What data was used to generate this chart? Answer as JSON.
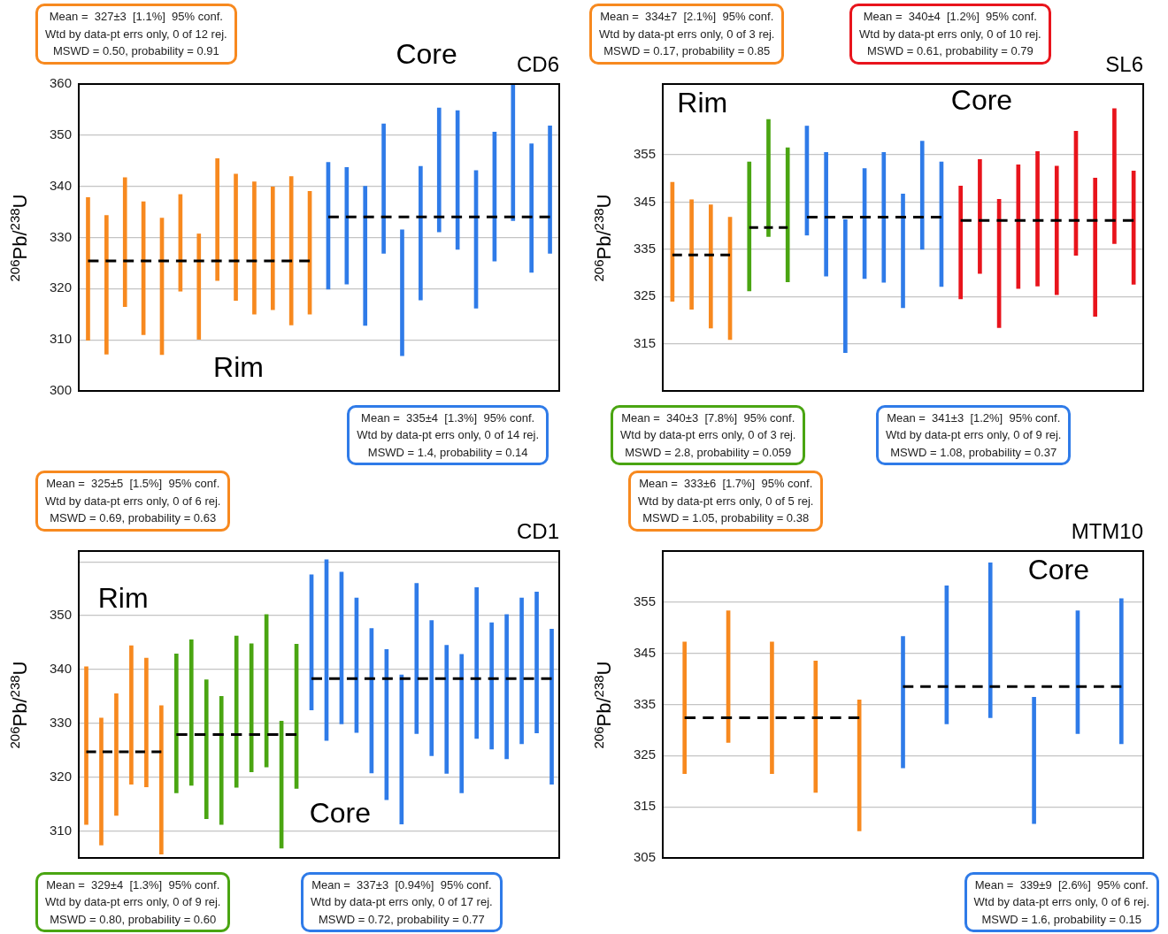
{
  "chart_data": [
    {
      "type": "bar",
      "title": "CD6",
      "ylabel": "$^{206}$Pb/$^{238}$U",
      "ylim": [
        300,
        360
      ],
      "yticks": [
        300,
        310,
        320,
        330,
        340,
        350,
        360
      ],
      "grid": "y",
      "tick_labels": "y",
      "categories": [
        null,
        null,
        null,
        null,
        null,
        null,
        null,
        null,
        null,
        null,
        null,
        null,
        null,
        null,
        null,
        null,
        null,
        null,
        null,
        null,
        null,
        null,
        null,
        null,
        null,
        null
      ],
      "series": [
        {
          "color": "#f7891f",
          "values": [
            27.9,
            27.1,
            25.2,
            26.0,
            26.7,
            18.9,
            20.6,
            23.8,
            24.7,
            25.9,
            24.0,
            29.0,
            24.0,
            null,
            null,
            null,
            null,
            null,
            null,
            null,
            null,
            null,
            null,
            null,
            null,
            null
          ],
          "base": [
            309.9,
            307.2,
            316.5,
            311.0,
            307.1,
            319.5,
            310.1,
            321.6,
            317.7,
            315.0,
            315.9,
            312.9,
            315.0,
            null,
            null,
            null,
            null,
            null,
            null,
            null,
            null,
            null,
            null,
            null,
            null,
            null
          ]
        },
        {
          "color": "#2f7be8",
          "values": [
            null,
            null,
            null,
            null,
            null,
            null,
            null,
            null,
            null,
            null,
            null,
            null,
            null,
            24.8,
            22.8,
            27.2,
            25.3,
            24.6,
            26.1,
            24.2,
            27.1,
            26.9,
            25.2,
            26.5,
            25.1,
            24.9
          ],
          "base": [
            null,
            null,
            null,
            null,
            null,
            null,
            null,
            null,
            null,
            null,
            null,
            null,
            null,
            319.9,
            320.9,
            312.8,
            326.9,
            306.9,
            317.8,
            331.1,
            327.7,
            316.2,
            325.4,
            333.3,
            323.2,
            326.9
          ]
        },
        {
          "type": "line",
          "color": "#000000",
          "line_style": "dashed",
          "marker": "none",
          "values": [
            325.4,
            325.4,
            325.4,
            325.4,
            325.4,
            325.4,
            325.4,
            325.4,
            325.4,
            325.4,
            325.4,
            325.4,
            325.4,
            null,
            null,
            null,
            null,
            null,
            null,
            null,
            null,
            null,
            null,
            null,
            null,
            null
          ]
        },
        {
          "type": "line",
          "color": "#000000",
          "line_style": "dashed",
          "marker": "none",
          "values": [
            null,
            null,
            null,
            null,
            null,
            null,
            null,
            null,
            null,
            null,
            null,
            null,
            null,
            334.0,
            334.0,
            334.0,
            334.0,
            334.0,
            334.0,
            334.0,
            334.0,
            334.0,
            334.0,
            334.0,
            334.0,
            334.0
          ]
        }
      ],
      "annotations": [
        "Mean =  327±3  [1.1%]  95% conf.\nWtd by data-pt errs only, 0 of 12 rej.\nMSWD = 0.50, probability = 0.91",
        "Mean =  335±4  [1.3%]  95% conf.\nWtd by data-pt errs only, 0 of 14 rej.\nMSWD = 1.4, probability = 0.14",
        "Rim",
        "Core"
      ]
    },
    {
      "type": "bar",
      "title": "SL6",
      "ylabel": "$^{206}$Pb/$^{238}$U",
      "ylim": [
        305,
        370
      ],
      "yticks": [
        315,
        325,
        335,
        345,
        355
      ],
      "grid": "y",
      "tick_labels": "y",
      "categories": [
        null,
        null,
        null,
        null,
        null,
        null,
        null,
        null,
        null,
        null,
        null,
        null,
        null,
        null,
        null,
        null,
        null,
        null,
        null,
        null,
        null,
        null,
        null,
        null,
        null
      ],
      "series": [
        {
          "color": "#f7891f",
          "values": [
            25.2,
            23.2,
            26.1,
            25.9,
            null,
            null,
            null,
            null,
            null,
            null,
            null,
            null,
            null,
            null,
            null,
            null,
            null,
            null,
            null,
            null,
            null,
            null,
            null,
            null,
            null
          ],
          "base": [
            324.0,
            322.3,
            318.3,
            315.9,
            null,
            null,
            null,
            null,
            null,
            null,
            null,
            null,
            null,
            null,
            null,
            null,
            null,
            null,
            null,
            null,
            null,
            null,
            null,
            null,
            null
          ]
        },
        {
          "color": "#4aa512",
          "values": [
            null,
            null,
            null,
            null,
            27.3,
            24.8,
            28.4,
            null,
            null,
            null,
            null,
            null,
            null,
            null,
            null,
            null,
            null,
            null,
            null,
            null,
            null,
            null,
            null,
            null,
            null
          ],
          "base": [
            null,
            null,
            null,
            null,
            326.2,
            337.7,
            328.1,
            null,
            null,
            null,
            null,
            null,
            null,
            null,
            null,
            null,
            null,
            null,
            null,
            null,
            null,
            null,
            null,
            null,
            null
          ]
        },
        {
          "color": "#2f7be8",
          "values": [
            null,
            null,
            null,
            null,
            null,
            null,
            null,
            23.1,
            26.2,
            28.2,
            23.3,
            27.5,
            24.1,
            22.9,
            26.4,
            null,
            null,
            null,
            null,
            null,
            null,
            null,
            null,
            null,
            null
          ],
          "base": [
            null,
            null,
            null,
            null,
            null,
            null,
            null,
            338.0,
            329.3,
            313.1,
            328.8,
            328.0,
            322.6,
            335.0,
            327.1,
            null,
            null,
            null,
            null,
            null,
            null,
            null,
            null,
            null,
            null
          ]
        },
        {
          "color": "#e8141c",
          "values": [
            null,
            null,
            null,
            null,
            null,
            null,
            null,
            null,
            null,
            null,
            null,
            null,
            null,
            null,
            null,
            23.9,
            24.1,
            27.2,
            26.2,
            28.5,
            27.2,
            26.3,
            29.3,
            28.6,
            24.0
          ],
          "base": [
            null,
            null,
            null,
            null,
            null,
            null,
            null,
            null,
            null,
            null,
            null,
            null,
            null,
            null,
            null,
            324.5,
            329.9,
            318.4,
            326.7,
            327.2,
            325.4,
            333.7,
            320.8,
            336.2,
            327.6
          ]
        },
        {
          "type": "line",
          "color": "#000000",
          "line_style": "dashed",
          "marker": "none",
          "values": [
            333.8,
            333.8,
            333.8,
            333.8,
            null,
            null,
            null,
            null,
            null,
            null,
            null,
            null,
            null,
            null,
            null,
            null,
            null,
            null,
            null,
            null,
            null,
            null,
            null,
            null,
            null
          ]
        },
        {
          "type": "line",
          "color": "#000000",
          "line_style": "dashed",
          "marker": "none",
          "values": [
            null,
            null,
            null,
            null,
            339.6,
            339.6,
            339.6,
            null,
            null,
            null,
            null,
            null,
            null,
            null,
            null,
            null,
            null,
            null,
            null,
            null,
            null,
            null,
            null,
            null,
            null
          ]
        },
        {
          "type": "line",
          "color": "#000000",
          "line_style": "dashed",
          "marker": "none",
          "values": [
            null,
            null,
            null,
            null,
            null,
            null,
            null,
            341.8,
            341.8,
            341.8,
            341.8,
            341.8,
            341.8,
            341.8,
            341.8,
            null,
            null,
            null,
            null,
            null,
            null,
            null,
            null,
            null,
            null
          ]
        },
        {
          "type": "line",
          "color": "#000000",
          "line_style": "dashed",
          "marker": "none",
          "values": [
            null,
            null,
            null,
            null,
            null,
            null,
            null,
            null,
            null,
            null,
            null,
            null,
            null,
            null,
            null,
            341.1,
            341.1,
            341.1,
            341.1,
            341.1,
            341.1,
            341.1,
            341.1,
            341.1,
            341.1
          ]
        }
      ],
      "annotations": [
        "Mean =  334±7  [2.1%]  95% conf.\nWtd by data-pt errs only, 0 of 3 rej.\nMSWD = 0.17, probability = 0.85",
        "Mean =  340±3  [7.8%]  95% conf.\nWtd by data-pt errs only, 0 of 3 rej.\nMSWD = 2.8, probability = 0.059",
        "Mean =  341±3  [1.2%]  95% conf.\nWtd by data-pt errs only, 0 of 9 rej.\nMSWD = 1.08, probability = 0.37",
        "Mean =  340±4  [1.2%]  95% conf.\nWtd by data-pt errs only, 0 of 10 rej.\nMSWD = 0.61, probability = 0.79",
        "Rim",
        "Core"
      ]
    },
    {
      "type": "bar",
      "title": "CD1",
      "ylabel": "$^{206}$Pb/$^{238}$U",
      "ylim": [
        305,
        362
      ],
      "yticks": [
        310,
        320,
        330,
        340,
        350,
        {
          "value": 360,
          "label": null
        }
      ],
      "grid": "y",
      "tick_labels": "y",
      "categories": [
        null,
        null,
        null,
        null,
        null,
        null,
        null,
        null,
        null,
        null,
        null,
        null,
        null,
        null,
        null,
        null,
        null,
        null,
        null,
        null,
        null,
        null,
        null,
        null,
        null,
        null,
        null,
        null,
        null,
        null,
        null,
        null
      ],
      "series": [
        {
          "color": "#f7891f",
          "values": [
            29.3,
            23.6,
            22.6,
            25.7,
            23.9,
            27.6,
            null,
            null,
            null,
            null,
            null,
            null,
            null,
            null,
            null,
            null,
            null,
            null,
            null,
            null,
            null,
            null,
            null,
            null,
            null,
            null,
            null,
            null,
            null,
            null,
            null,
            null
          ],
          "base": [
            311.2,
            307.4,
            312.9,
            318.7,
            318.2,
            305.7,
            null,
            null,
            null,
            null,
            null,
            null,
            null,
            null,
            null,
            null,
            null,
            null,
            null,
            null,
            null,
            null,
            null,
            null,
            null,
            null,
            null,
            null,
            null,
            null,
            null,
            null
          ]
        },
        {
          "color": "#4aa512",
          "values": [
            null,
            null,
            null,
            null,
            null,
            null,
            25.8,
            27.0,
            25.8,
            23.8,
            28.1,
            23.8,
            28.3,
            23.6,
            26.8,
            null,
            null,
            null,
            null,
            null,
            null,
            null,
            null,
            null,
            null,
            null,
            null,
            null,
            null,
            null,
            null,
            null
          ],
          "base": [
            null,
            null,
            null,
            null,
            null,
            null,
            317.1,
            318.5,
            312.3,
            311.2,
            318.1,
            321.0,
            321.9,
            306.8,
            317.9,
            null,
            null,
            null,
            null,
            null,
            null,
            null,
            null,
            null,
            null,
            null,
            null,
            null,
            null,
            null,
            null,
            null
          ]
        },
        {
          "color": "#2f7be8",
          "values": [
            null,
            null,
            null,
            null,
            null,
            null,
            null,
            null,
            null,
            null,
            null,
            null,
            null,
            null,
            null,
            25.1,
            33.6,
            28.2,
            25.0,
            26.8,
            27.9,
            27.7,
            27.9,
            25.1,
            23.8,
            25.7,
            28.0,
            23.5,
            26.8,
            27.1,
            26.2,
            28.8
          ],
          "base": [
            null,
            null,
            null,
            null,
            null,
            null,
            null,
            null,
            null,
            null,
            null,
            null,
            null,
            null,
            null,
            332.5,
            326.8,
            329.9,
            328.3,
            320.8,
            315.8,
            311.3,
            328.1,
            324.0,
            320.7,
            317.1,
            327.2,
            325.2,
            323.4,
            326.2,
            328.2,
            318.7
          ]
        },
        {
          "type": "line",
          "color": "#000000",
          "line_style": "dashed",
          "marker": "none",
          "values": [
            324.7,
            324.7,
            324.7,
            324.7,
            324.7,
            324.7,
            null,
            null,
            null,
            null,
            null,
            null,
            null,
            null,
            null,
            null,
            null,
            null,
            null,
            null,
            null,
            null,
            null,
            null,
            null,
            null,
            null,
            null,
            null,
            null,
            null,
            null
          ]
        },
        {
          "type": "line",
          "color": "#000000",
          "line_style": "dashed",
          "marker": "none",
          "values": [
            null,
            null,
            null,
            null,
            null,
            null,
            327.9,
            327.9,
            327.9,
            327.9,
            327.9,
            327.9,
            327.9,
            327.9,
            327.9,
            null,
            null,
            null,
            null,
            null,
            null,
            null,
            null,
            null,
            null,
            null,
            null,
            null,
            null,
            null,
            null,
            null
          ]
        },
        {
          "type": "line",
          "color": "#000000",
          "line_style": "dashed",
          "marker": "none",
          "values": [
            null,
            null,
            null,
            null,
            null,
            null,
            null,
            null,
            null,
            null,
            null,
            null,
            null,
            null,
            null,
            338.3,
            338.3,
            338.3,
            338.3,
            338.3,
            338.3,
            338.3,
            338.3,
            338.3,
            338.3,
            338.3,
            338.3,
            338.3,
            338.3,
            338.3,
            338.3,
            338.3
          ]
        }
      ],
      "annotations": [
        "Mean =  325±5  [1.5%]  95% conf.\nWtd by data-pt errs only, 0 of 6 rej.\nMSWD = 0.69, probability = 0.63",
        "Mean =  329±4  [1.3%]  95% conf.\nWtd by data-pt errs only, 0 of 9 rej.\nMSWD = 0.80, probability = 0.60",
        "Mean =  337±3  [0.94%]  95% conf.\nWtd by data-pt errs only, 0 of 17 rej.\nMSWD = 0.72, probability = 0.77",
        "Rim",
        "Core"
      ]
    },
    {
      "type": "bar",
      "title": "MTM10",
      "ylabel": "$^{206}$Pb/$^{238}$U",
      "ylim": [
        305,
        365
      ],
      "yticks": [
        305,
        315,
        325,
        335,
        345,
        355,
        {
          "value": 365,
          "label": null
        }
      ],
      "grid": "y",
      "tick_labels": "y",
      "categories": [
        null,
        null,
        null,
        null,
        null,
        null,
        null,
        null,
        null,
        null,
        null
      ],
      "series": [
        {
          "color": "#f7891f",
          "values": [
            25.7,
            25.7,
            25.7,
            25.7,
            25.6,
            null,
            null,
            null,
            null,
            null,
            null
          ],
          "base": [
            321.5,
            327.6,
            321.5,
            317.8,
            310.3,
            null,
            null,
            null,
            null,
            null,
            null
          ]
        },
        {
          "color": "#2f7be8",
          "values": [
            null,
            null,
            null,
            null,
            null,
            25.7,
            27.0,
            30.3,
            24.7,
            24.0,
            28.4
          ],
          "base": [
            null,
            null,
            null,
            null,
            null,
            322.6,
            331.2,
            332.4,
            311.7,
            329.3,
            327.3
          ]
        },
        {
          "type": "line",
          "color": "#000000",
          "line_style": "dashed",
          "marker": "none",
          "values": [
            332.4,
            332.4,
            332.4,
            332.4,
            332.4,
            null,
            null,
            null,
            null,
            null,
            null
          ]
        },
        {
          "type": "line",
          "color": "#000000",
          "line_style": "dashed",
          "marker": "none",
          "values": [
            null,
            null,
            null,
            null,
            null,
            338.5,
            338.5,
            338.5,
            338.5,
            338.5,
            338.5
          ]
        }
      ],
      "annotations": [
        "Mean =  333±6  [1.7%]  95% conf.\nWtd by data-pt errs only, 0 of 5 rej.\nMSWD = 1.05, probability = 0.38",
        "Mean =  339±9  [2.6%]  95% conf.\nWtd by data-pt errs only, 0 of 6 rej.\nMSWD = 1.6, probability = 0.15",
        "Core"
      ]
    }
  ]
}
